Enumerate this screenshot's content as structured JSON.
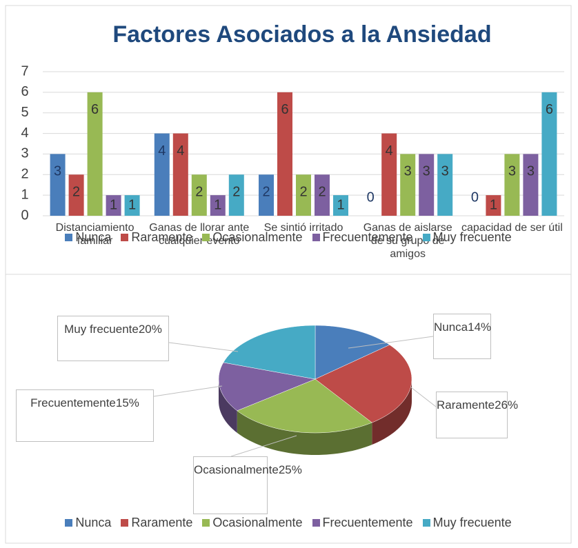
{
  "chart_data": [
    {
      "type": "bar",
      "title": "Factores Asociados a la Ansiedad",
      "categories": [
        "Distanciamiento familiar",
        "Ganas de llorar ante cualquier evento",
        "Se sintió irritado",
        "Ganas de aislarse de su grupo de amigos",
        "capacidad de ser útil"
      ],
      "series": [
        {
          "name": "Nunca",
          "color": "#4a7ebb",
          "values": [
            3,
            4,
            2,
            0,
            0
          ]
        },
        {
          "name": "Raramente",
          "color": "#be4b48",
          "values": [
            2,
            4,
            6,
            4,
            1
          ]
        },
        {
          "name": "Ocasionalmente",
          "color": "#98b954",
          "values": [
            6,
            2,
            2,
            3,
            3
          ]
        },
        {
          "name": "Frecuentemente",
          "color": "#7d60a0",
          "values": [
            1,
            1,
            2,
            3,
            3
          ]
        },
        {
          "name": "Muy frecuente",
          "color": "#46aac5",
          "values": [
            1,
            2,
            1,
            3,
            6
          ]
        }
      ],
      "ylim": [
        0,
        7
      ],
      "yticks": [
        0,
        1,
        2,
        3,
        4,
        5,
        6,
        7
      ],
      "grid": true,
      "legend": "bottom"
    },
    {
      "type": "pie",
      "categories": [
        "Nunca",
        "Raramente",
        "Ocasionalmente",
        "Frecuentemente",
        "Muy frecuente"
      ],
      "values": [
        14,
        26,
        25,
        15,
        20
      ],
      "value_labels": [
        "14%",
        "26%",
        "25%",
        "15%",
        "20%"
      ],
      "colors": [
        "#4a7ebb",
        "#be4b48",
        "#98b954",
        "#7d60a0",
        "#46aac5"
      ],
      "legend": "bottom"
    }
  ]
}
